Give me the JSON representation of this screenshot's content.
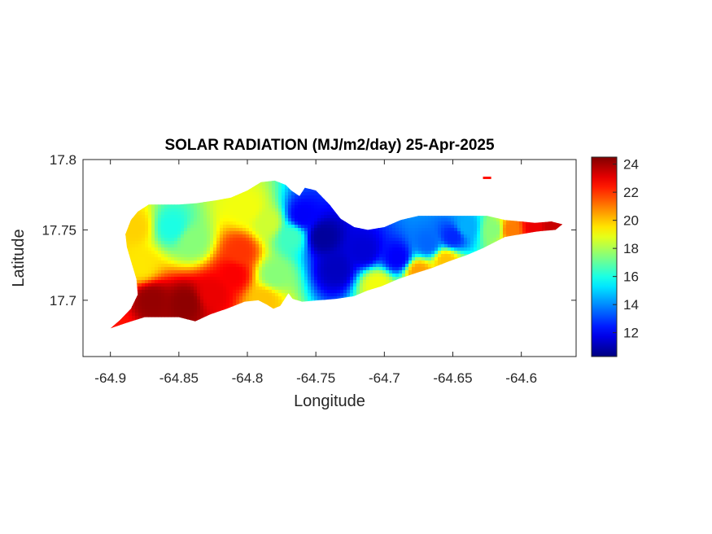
{
  "chart_data": {
    "type": "heatmap",
    "title": "SOLAR RADIATION (MJ/m2/day) 25-Apr-2025",
    "xlabel": "Longitude",
    "ylabel": "Latitude",
    "xlim": [
      -64.92,
      -64.56
    ],
    "ylim": [
      17.66,
      17.8
    ],
    "xticks": [
      -64.9,
      -64.85,
      -64.8,
      -64.75,
      -64.7,
      -64.65,
      -64.6
    ],
    "xtick_labels": [
      "-64.9",
      "-64.85",
      "-64.8",
      "-64.75",
      "-64.7",
      "-64.65",
      "-64.6"
    ],
    "yticks": [
      17.7,
      17.75,
      17.8
    ],
    "ytick_labels": [
      "17.7",
      "17.75",
      "17.8"
    ],
    "colorbar": {
      "colormap": "jet",
      "range": [
        10.3,
        24.5
      ],
      "ticks": [
        12,
        14,
        16,
        18,
        20,
        22,
        24
      ],
      "tick_labels": [
        "12",
        "14",
        "16",
        "18",
        "20",
        "22",
        "24"
      ]
    },
    "grid": false,
    "region_outline": [
      [
        -64.9,
        17.68
      ],
      [
        -64.893,
        17.686
      ],
      [
        -64.885,
        17.694
      ],
      [
        -64.88,
        17.704
      ],
      [
        -64.881,
        17.715
      ],
      [
        -64.885,
        17.728
      ],
      [
        -64.888,
        17.738
      ],
      [
        -64.889,
        17.747
      ],
      [
        -64.885,
        17.757
      ],
      [
        -64.88,
        17.763
      ],
      [
        -64.872,
        17.768
      ],
      [
        -64.863,
        17.768
      ],
      [
        -64.85,
        17.768
      ],
      [
        -64.837,
        17.769
      ],
      [
        -64.823,
        17.771
      ],
      [
        -64.812,
        17.773
      ],
      [
        -64.8,
        17.778
      ],
      [
        -64.79,
        17.784
      ],
      [
        -64.78,
        17.785
      ],
      [
        -64.772,
        17.782
      ],
      [
        -64.768,
        17.778
      ],
      [
        -64.762,
        17.774
      ],
      [
        -64.758,
        17.78
      ],
      [
        -64.75,
        17.778
      ],
      [
        -64.74,
        17.768
      ],
      [
        -64.732,
        17.758
      ],
      [
        -64.722,
        17.752
      ],
      [
        -64.712,
        17.75
      ],
      [
        -64.7,
        17.752
      ],
      [
        -64.688,
        17.757
      ],
      [
        -64.675,
        17.76
      ],
      [
        -64.662,
        17.76
      ],
      [
        -64.65,
        17.76
      ],
      [
        -64.637,
        17.76
      ],
      [
        -64.625,
        17.76
      ],
      [
        -64.612,
        17.757
      ],
      [
        -64.6,
        17.756
      ],
      [
        -64.59,
        17.755
      ],
      [
        -64.578,
        17.756
      ],
      [
        -64.57,
        17.754
      ],
      [
        -64.575,
        17.75
      ],
      [
        -64.588,
        17.749
      ],
      [
        -64.6,
        17.747
      ],
      [
        -64.612,
        17.745
      ],
      [
        -64.62,
        17.741
      ],
      [
        -64.628,
        17.737
      ],
      [
        -64.64,
        17.732
      ],
      [
        -64.652,
        17.728
      ],
      [
        -64.665,
        17.723
      ],
      [
        -64.678,
        17.719
      ],
      [
        -64.69,
        17.715
      ],
      [
        -64.702,
        17.71
      ],
      [
        -64.712,
        17.707
      ],
      [
        -64.722,
        17.703
      ],
      [
        -64.735,
        17.701
      ],
      [
        -64.748,
        17.7
      ],
      [
        -64.76,
        17.699
      ],
      [
        -64.767,
        17.701
      ],
      [
        -64.77,
        17.705
      ],
      [
        -64.776,
        17.696
      ],
      [
        -64.781,
        17.694
      ],
      [
        -64.786,
        17.697
      ],
      [
        -64.792,
        17.7
      ],
      [
        -64.802,
        17.699
      ],
      [
        -64.815,
        17.694
      ],
      [
        -64.827,
        17.69
      ],
      [
        -64.838,
        17.685
      ],
      [
        -64.85,
        17.688
      ],
      [
        -64.862,
        17.688
      ],
      [
        -64.875,
        17.688
      ],
      [
        -64.888,
        17.684
      ],
      [
        -64.9,
        17.68
      ]
    ],
    "islet": [
      [
        -64.628,
        17.787
      ],
      [
        -64.622,
        17.787
      ]
    ],
    "field_samples": [
      {
        "lon": -64.87,
        "lat": 17.7,
        "value": 24.2
      },
      {
        "lon": -64.845,
        "lat": 17.698,
        "value": 24.3
      },
      {
        "lon": -64.825,
        "lat": 17.705,
        "value": 23.0
      },
      {
        "lon": -64.81,
        "lat": 17.718,
        "value": 22.8
      },
      {
        "lon": -64.805,
        "lat": 17.735,
        "value": 22.0
      },
      {
        "lon": -64.878,
        "lat": 17.725,
        "value": 19.5
      },
      {
        "lon": -64.882,
        "lat": 17.752,
        "value": 19.8
      },
      {
        "lon": -64.855,
        "lat": 17.752,
        "value": 16.0
      },
      {
        "lon": -64.84,
        "lat": 17.742,
        "value": 17.5
      },
      {
        "lon": -64.8,
        "lat": 17.765,
        "value": 19.0
      },
      {
        "lon": -64.785,
        "lat": 17.755,
        "value": 18.5
      },
      {
        "lon": -64.78,
        "lat": 17.718,
        "value": 17.5
      },
      {
        "lon": -64.768,
        "lat": 17.745,
        "value": 16.5
      },
      {
        "lon": -64.76,
        "lat": 17.76,
        "value": 12.0
      },
      {
        "lon": -64.745,
        "lat": 17.745,
        "value": 10.7
      },
      {
        "lon": -64.735,
        "lat": 17.722,
        "value": 11.2
      },
      {
        "lon": -64.715,
        "lat": 17.735,
        "value": 11.5
      },
      {
        "lon": -64.69,
        "lat": 17.73,
        "value": 12.0
      },
      {
        "lon": -64.668,
        "lat": 17.74,
        "value": 13.5
      },
      {
        "lon": -64.65,
        "lat": 17.745,
        "value": 12.6
      },
      {
        "lon": -64.64,
        "lat": 17.752,
        "value": 14.5
      },
      {
        "lon": -64.62,
        "lat": 17.75,
        "value": 17.5
      },
      {
        "lon": -64.608,
        "lat": 17.75,
        "value": 21.0
      },
      {
        "lon": -64.59,
        "lat": 17.752,
        "value": 23.0
      },
      {
        "lon": -64.578,
        "lat": 17.753,
        "value": 23.5
      },
      {
        "lon": -64.705,
        "lat": 17.711,
        "value": 19.0
      },
      {
        "lon": -64.675,
        "lat": 17.72,
        "value": 20.5
      },
      {
        "lon": -64.655,
        "lat": 17.728,
        "value": 20.0
      },
      {
        "lon": -64.898,
        "lat": 17.682,
        "value": 22.5
      },
      {
        "lon": -64.788,
        "lat": 17.7,
        "value": 20.0
      }
    ]
  }
}
